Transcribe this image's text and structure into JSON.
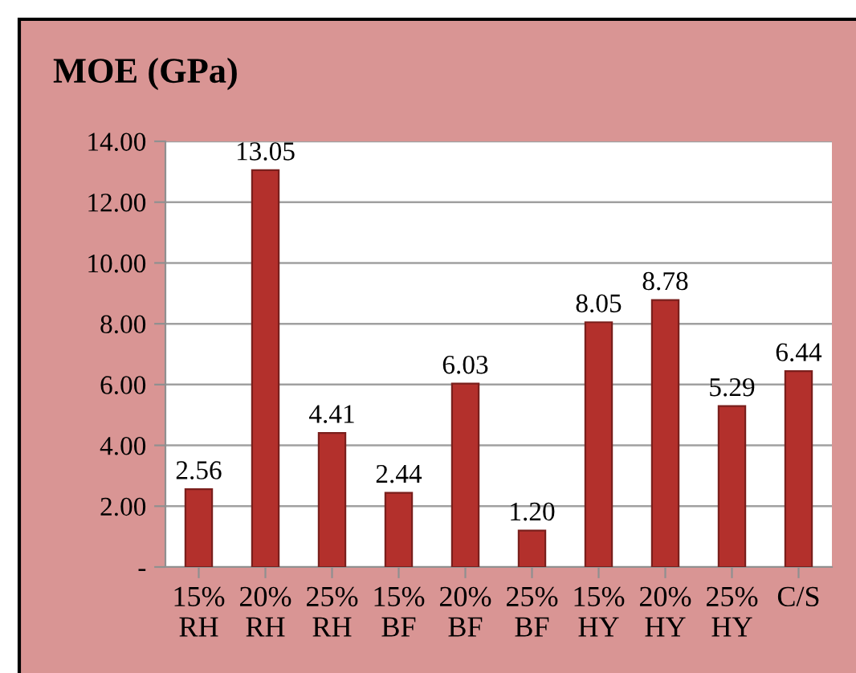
{
  "chart_data": {
    "type": "bar",
    "title": "MOE (GPa)",
    "categories": [
      "15%\nRH",
      "20%\nRH",
      "25%\nRH",
      "15%\nBF",
      "20%\nBF",
      "25%\nBF",
      "15%\nHY",
      "20%\nHY",
      "25%\nHY",
      "C/S"
    ],
    "values": [
      2.56,
      13.05,
      4.41,
      2.44,
      6.03,
      1.2,
      8.05,
      8.78,
      5.29,
      6.44
    ],
    "value_labels": [
      "2.56",
      "13.05",
      "4.41",
      "2.44",
      "6.03",
      "1.20",
      "8.05",
      "8.78",
      "5.29",
      "6.44"
    ],
    "color": "#b3302c",
    "ylim": [
      0,
      14
    ],
    "yticks": [
      {
        "value": 0,
        "label": "-"
      },
      {
        "value": 2,
        "label": "2.00"
      },
      {
        "value": 4,
        "label": "4.00"
      },
      {
        "value": 6,
        "label": "6.00"
      },
      {
        "value": 8,
        "label": "8.00"
      },
      {
        "value": 10,
        "label": "10.00"
      },
      {
        "value": 12,
        "label": "12.00"
      },
      {
        "value": 14,
        "label": "14.00"
      }
    ],
    "grid": "y",
    "legend": false
  }
}
